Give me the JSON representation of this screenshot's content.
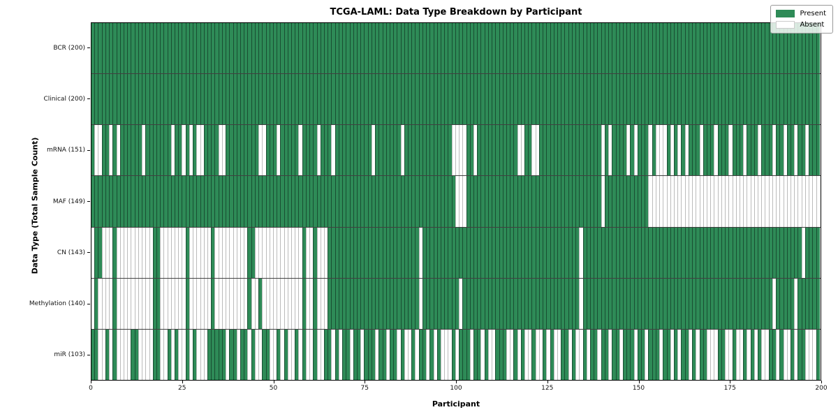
{
  "title": "TCGA-LAML: Data Type Breakdown by Participant",
  "legend": {
    "present_label": "Present",
    "absent_label": "Absent"
  },
  "chart_data": {
    "type": "heatmap",
    "title": "TCGA-LAML: Data Type Breakdown by Participant",
    "xlabel": "Participant",
    "ylabel": "Data Type (Total Sample Count)",
    "x_range": [
      0,
      200
    ],
    "n_participants": 200,
    "x_ticks": [
      0,
      25,
      50,
      75,
      100,
      125,
      150,
      175,
      200
    ],
    "grid": "cell-borders",
    "legend_position": "upper-right",
    "colors": {
      "present": "#2e8b57",
      "absent": "#ffffff",
      "border": "#000000"
    },
    "value_encoding": {
      "1": "Present",
      "0": "Absent"
    },
    "rows": [
      {
        "label": "BCR (200)",
        "name": "BCR",
        "present_count": 200,
        "pattern": "11111111111111111111111111111111111111111111111111111111111111111111111111111111111111111111111111111111111111111111111111111111111111111111111111111111111111111111111111111111111111111111111111111111"
      },
      {
        "label": "Clinical (200)",
        "name": "Clinical",
        "present_count": 200,
        "pattern": "11111111111111111111111111111111111111111111111111111111111111111111111111111111111111111111111111111111111111111111111111111111111111111111111111111111111111111111111111111111111111111111111111111111"
      },
      {
        "label": "mRNA (151)",
        "name": "mRNA",
        "present_count": 151,
        "pattern": "1001101011111101111111011010100111100111111111001110111110111101110111111111101111111011111111111110000110111111111110011001111111111111111101011110101110100010101011101110111011101110111011011011 0111"
      },
      {
        "label": "MAF (149)",
        "name": "MAF",
        "present_count": 149,
        "pattern": "1111111111111111111111111111111111111111111111111111111111111111111111111111111111111111111111111111000111111111111111111111111111111111111101111111111110000000000000000000000000000000000000000000 0000"
      },
      {
        "label": "CN (143)",
        "name": "CN",
        "present_count": 143,
        "pattern": "0110001000000000011000000010000001000000000110000000000000100100011111111111111111111111110111111111111111111111111111111111111111111101111111111111111111111111111111111111111111111111111111111110 1111"
      },
      {
        "label": "Methylation (140)",
        "name": "Methylation",
        "present_count": 140,
        "pattern": "0100001000000000011000000010000001000000000100100000000000100100011111111111111111111111110111111111101111111111111111111111111111111101111111111111111111111111111111111111111111111111111011111011 1111"
      },
      {
        "label": "miR (103)",
        "name": "miR",
        "present_count": 103,
        "pattern": "1100101000011000011001010010100011111011011010011001010010100100110101101101110110110100101101010001011101101001110010100100101001101001011011011011101101110110101101011000110010010101001101001011 0001"
      }
    ]
  }
}
